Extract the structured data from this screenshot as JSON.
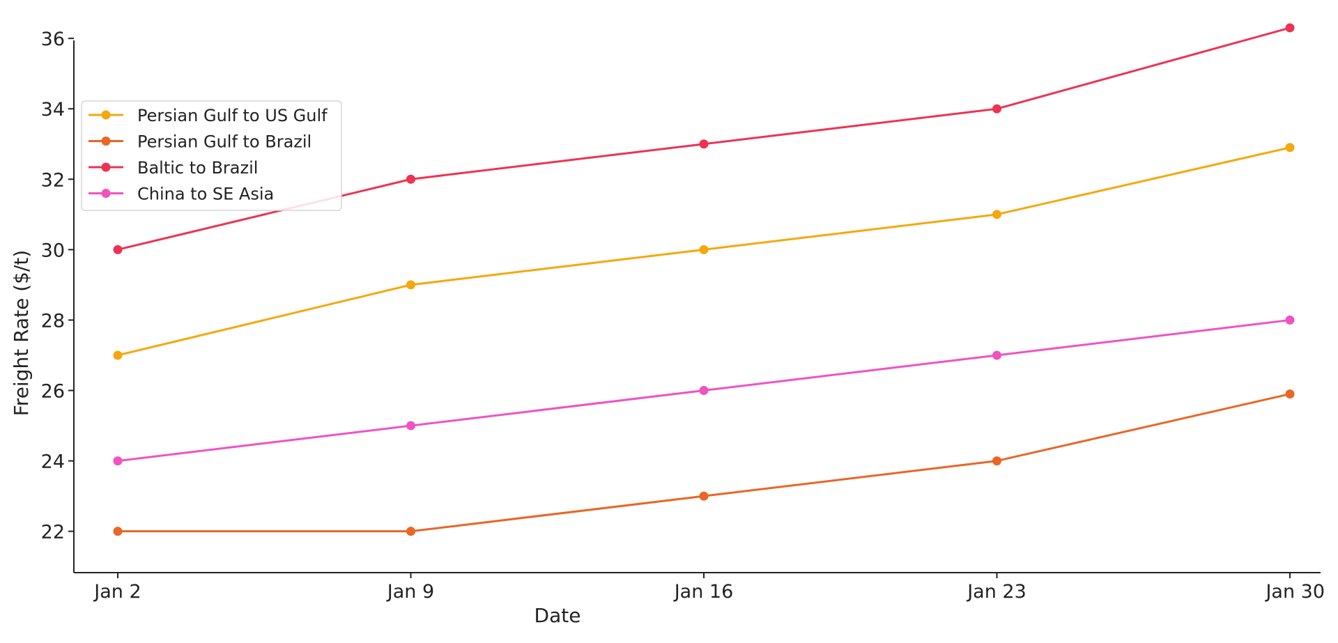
{
  "chart_data": {
    "type": "line",
    "title": "",
    "xlabel": "Date",
    "ylabel": "Freight Rate ($/t)",
    "categories": [
      "Jan 2",
      "Jan 9",
      "Jan 16",
      "Jan 23",
      "Jan 30"
    ],
    "ylim": [
      21.4,
      36.2
    ],
    "yticks": [
      22,
      24,
      26,
      28,
      30,
      32,
      34,
      36
    ],
    "grid": false,
    "legend_position": "upper-left",
    "series": [
      {
        "name": "Persian Gulf to US Gulf",
        "color": "#f5a80c",
        "values": [
          27,
          29,
          30,
          31,
          32.9
        ]
      },
      {
        "name": "Persian Gulf to Brazil",
        "color": "#eb6524",
        "values": [
          22,
          22,
          23,
          24,
          25.9
        ]
      },
      {
        "name": "Baltic to Brazil",
        "color": "#ec3354",
        "values": [
          30,
          32,
          33,
          34,
          36.3
        ]
      },
      {
        "name": "China to SE Asia",
        "color": "#f052c2",
        "values": [
          24,
          25,
          26,
          27,
          28
        ]
      }
    ]
  }
}
